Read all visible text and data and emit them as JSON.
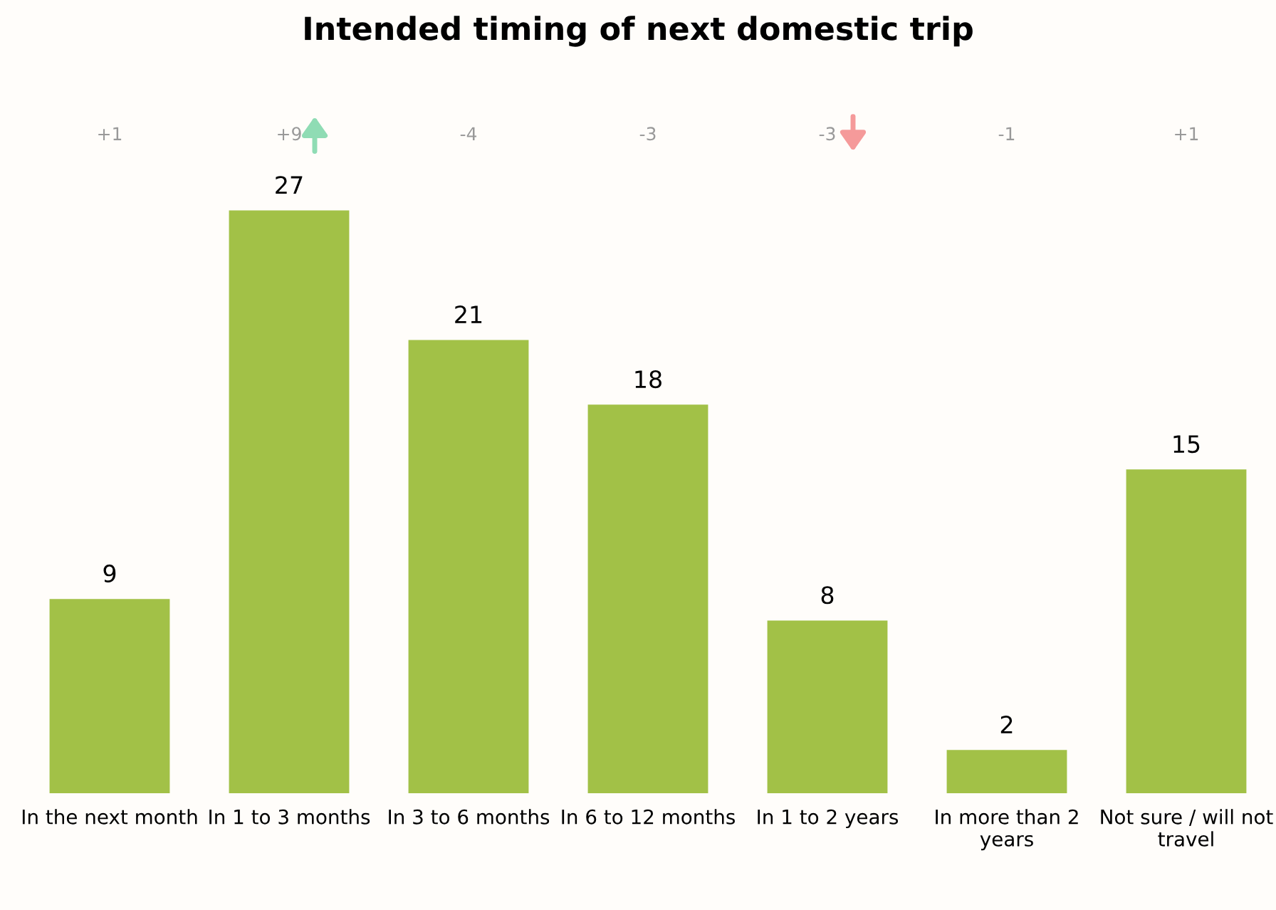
{
  "chart_data": {
    "type": "bar",
    "title": "Intended timing of next domestic trip",
    "categories": [
      "In the next month",
      "In 1 to 3 months",
      "In 3 to 6 months",
      "In 6 to 12 months",
      "In 1 to 2 years",
      "In more than 2\nyears",
      "Not sure / will not\ntravel"
    ],
    "values": [
      9,
      27,
      21,
      18,
      8,
      2,
      15
    ],
    "color": "#a2c147",
    "data_labels": true,
    "annotations": [
      "+1",
      "+9",
      "-4",
      "-3",
      "-3",
      "-1",
      "+1"
    ],
    "legend": false,
    "grid": false
  }
}
